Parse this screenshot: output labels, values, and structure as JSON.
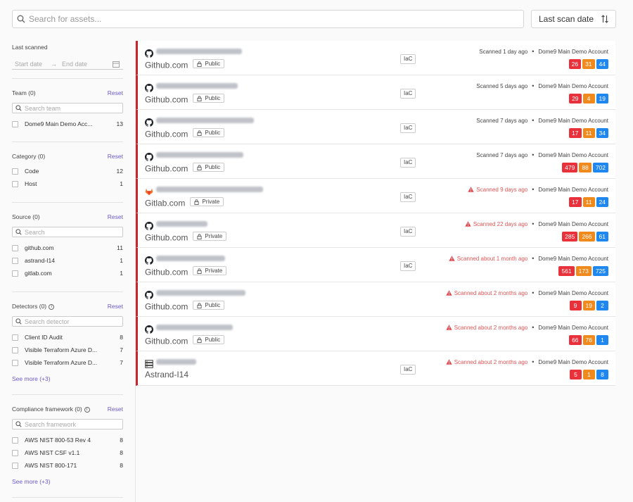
{
  "search": {
    "placeholder": "Search for assets..."
  },
  "sort": {
    "label": "Last scan date"
  },
  "filters": {
    "last_scanned": {
      "title": "Last scanned",
      "start_placeholder": "Start date",
      "end_placeholder": "End date"
    },
    "team": {
      "title": "Team (0)",
      "reset": "Reset",
      "search_placeholder": "Search team",
      "items": [
        {
          "label": "Dome9 Main Demo Acc...",
          "count": "13"
        }
      ]
    },
    "category": {
      "title": "Category (0)",
      "reset": "Reset",
      "items": [
        {
          "label": "Code",
          "count": "12"
        },
        {
          "label": "Host",
          "count": "1"
        }
      ]
    },
    "source": {
      "title": "Source (0)",
      "reset": "Reset",
      "search_placeholder": "Search",
      "items": [
        {
          "label": "github.com",
          "count": "11"
        },
        {
          "label": "astrand-I14",
          "count": "1"
        },
        {
          "label": "gitlab.com",
          "count": "1"
        }
      ]
    },
    "detectors": {
      "title": "Detectors (0)",
      "reset": "Reset",
      "search_placeholder": "Search detector",
      "items": [
        {
          "label": "Client ID Audit",
          "count": "8"
        },
        {
          "label": "Visible Terraform Azure D...",
          "count": "7"
        },
        {
          "label": "Visible Terraform Azure D...",
          "count": "7"
        }
      ],
      "see_more": "See more (+3)"
    },
    "compliance": {
      "title": "Compliance framework (0)",
      "reset": "Reset",
      "search_placeholder": "Search framework",
      "items": [
        {
          "label": "AWS NIST 800-53 Rev 4",
          "count": "8"
        },
        {
          "label": "AWS NIST CSF v1.1",
          "count": "8"
        },
        {
          "label": "AWS NIST 800-171",
          "count": "8"
        }
      ],
      "see_more": "See more (+3)"
    }
  },
  "colors": {
    "critical": "#e8313b",
    "high": "#f18a1d",
    "medium": "#1e87f0",
    "accent": "#6a5acd",
    "stripe": "#c9252c"
  },
  "assets": [
    {
      "icon": "github-icon",
      "host": "Github.com",
      "visibility": "Public",
      "tag": "IaC",
      "scan": "Scanned 1 day ago",
      "warn": false,
      "account": "Dome9 Main Demo Account",
      "critical": "26",
      "high": "31",
      "medium": "44"
    },
    {
      "icon": "github-icon",
      "host": "Github.com",
      "visibility": "Public",
      "tag": "IaC",
      "scan": "Scanned 5 days ago",
      "warn": false,
      "account": "Dome9 Main Demo Account",
      "critical": "29",
      "high": "4",
      "medium": "19"
    },
    {
      "icon": "github-icon",
      "host": "Github.com",
      "visibility": "Public",
      "tag": "IaC",
      "scan": "Scanned 7 days ago",
      "warn": false,
      "account": "Dome9 Main Demo Account",
      "critical": "17",
      "high": "11",
      "medium": "34"
    },
    {
      "icon": "github-icon",
      "host": "Github.com",
      "visibility": "Public",
      "tag": "IaC",
      "scan": "Scanned 7 days ago",
      "warn": false,
      "account": "Dome9 Main Demo Account",
      "critical": "479",
      "high": "88",
      "medium": "702"
    },
    {
      "icon": "gitlab-icon",
      "host": "Gitlab.com",
      "visibility": "Private",
      "tag": "IaC",
      "scan": "Scanned 9 days ago",
      "warn": true,
      "account": "Dome9 Main Demo Account",
      "critical": "17",
      "high": "11",
      "medium": "24"
    },
    {
      "icon": "github-icon",
      "host": "Github.com",
      "visibility": "Private",
      "tag": "IaC",
      "scan": "Scanned 22 days ago",
      "warn": true,
      "account": "Dome9 Main Demo Account",
      "critical": "285",
      "high": "266",
      "medium": "61"
    },
    {
      "icon": "github-icon",
      "host": "Github.com",
      "visibility": "Private",
      "tag": "IaC",
      "scan": "Scanned about 1 month ago",
      "warn": true,
      "account": "Dome9 Main Demo Account",
      "critical": "561",
      "high": "173",
      "medium": "725"
    },
    {
      "icon": "github-icon",
      "host": "Github.com",
      "visibility": "Public",
      "tag": "",
      "scan": "Scanned about 2 months ago",
      "warn": true,
      "account": "Dome9 Main Demo Account",
      "critical": "9",
      "high": "19",
      "medium": "2"
    },
    {
      "icon": "github-icon",
      "host": "Github.com",
      "visibility": "Public",
      "tag": "",
      "scan": "Scanned about 2 months ago",
      "warn": true,
      "account": "Dome9 Main Demo Account",
      "critical": "66",
      "high": "76",
      "medium": "1"
    },
    {
      "icon": "server-icon",
      "host": "Astrand-I14",
      "visibility": "",
      "tag": "IaC",
      "scan": "Scanned about 2 months ago",
      "warn": true,
      "account": "Dome9 Main Demo Account",
      "critical": "5",
      "high": "1",
      "medium": "8"
    }
  ]
}
